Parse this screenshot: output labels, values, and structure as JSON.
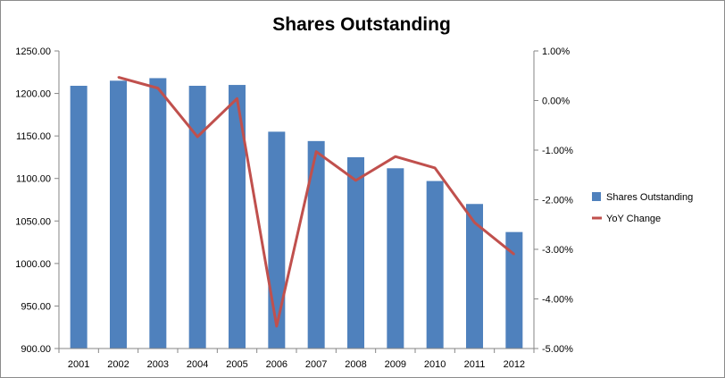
{
  "chart_data": {
    "type": "bar",
    "title": "Shares Outstanding",
    "categories": [
      "2001",
      "2002",
      "2003",
      "2004",
      "2005",
      "2006",
      "2007",
      "2008",
      "2009",
      "2010",
      "2011",
      "2012"
    ],
    "series": [
      {
        "name": "Shares Outstanding",
        "type": "bar",
        "axis": "left",
        "color": "#4f81bd",
        "values": [
          1209,
          1215,
          1218,
          1209,
          1210,
          1155,
          1144,
          1125,
          1112,
          1097,
          1070,
          1037
        ]
      },
      {
        "name": "YoY Change",
        "type": "line",
        "axis": "right",
        "color": "#c0504d",
        "values": [
          null,
          0.0047,
          0.0025,
          -0.0073,
          0.0004,
          -0.0455,
          -0.0103,
          -0.0161,
          -0.0113,
          -0.0136,
          -0.0246,
          -0.031
        ]
      }
    ],
    "y_left": {
      "ylim": [
        900,
        1250
      ],
      "ticks": [
        "900.00",
        "950.00",
        "1000.00",
        "1050.00",
        "1100.00",
        "1150.00",
        "1200.00",
        "1250.00"
      ]
    },
    "y_right": {
      "ylim": [
        -0.05,
        0.01
      ],
      "ticks": [
        "-5.00%",
        "-4.00%",
        "-3.00%",
        "-2.00%",
        "-1.00%",
        "0.00%",
        "1.00%"
      ]
    },
    "grid": false,
    "legend_position": "right"
  }
}
